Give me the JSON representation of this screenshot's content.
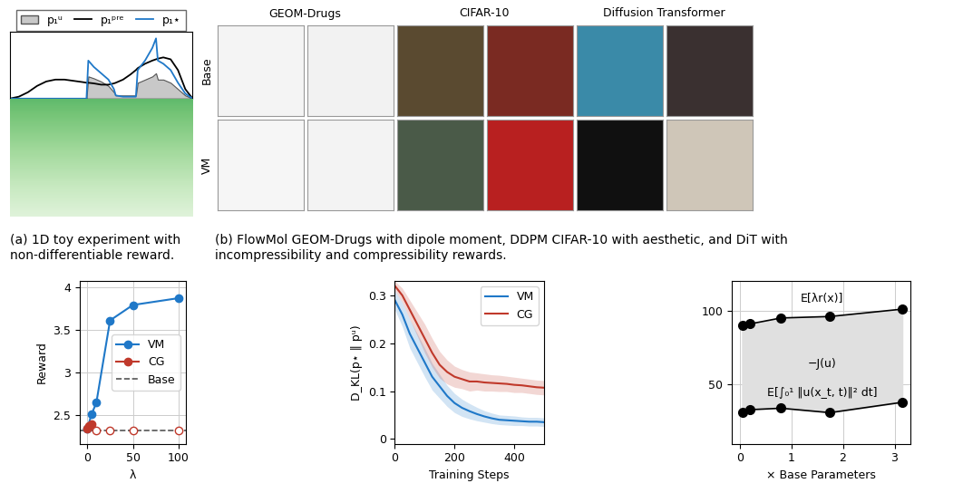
{
  "chart_data": [
    {
      "type": "line",
      "caption": "(a) 1D toy experiment with non-differentiable reward.",
      "legend": "upper center",
      "tick_labels": false,
      "xlim": [
        0,
        1
      ],
      "ylim": [
        0,
        1.05
      ],
      "x": [
        0,
        0.05,
        0.1,
        0.15,
        0.2,
        0.25,
        0.3,
        0.35,
        0.4,
        0.42,
        0.43,
        0.46,
        0.5,
        0.54,
        0.57,
        0.58,
        0.62,
        0.66,
        0.69,
        0.7,
        0.74,
        0.78,
        0.8,
        0.81,
        0.84,
        0.88,
        0.92,
        0.96,
        1.0
      ],
      "series": [
        {
          "name": "p₁ᵘ",
          "type": "area",
          "color": "#c8c8c8",
          "values": [
            0,
            0,
            0,
            0,
            0,
            0,
            0,
            0,
            0,
            0,
            0.35,
            0.32,
            0.27,
            0.2,
            0.1,
            0.05,
            0.05,
            0.05,
            0.05,
            0.25,
            0.3,
            0.35,
            0.4,
            0.3,
            0.3,
            0.25,
            0.15,
            0.05,
            0
          ]
        },
        {
          "name": "p₁ᵖʳᵉ",
          "type": "line",
          "color": "#000000",
          "values": [
            0,
            0.03,
            0.1,
            0.2,
            0.27,
            0.3,
            0.3,
            0.28,
            0.26,
            0.25,
            0.25,
            0.24,
            0.22,
            0.22,
            0.24,
            0.25,
            0.3,
            0.38,
            0.45,
            0.48,
            0.55,
            0.6,
            0.62,
            0.63,
            0.65,
            0.62,
            0.45,
            0.15,
            0
          ]
        },
        {
          "name": "p₁⋆",
          "type": "line",
          "color": "#1f78c8",
          "values": [
            0,
            0,
            0,
            0,
            0,
            0,
            0,
            0,
            0,
            0,
            0.6,
            0.5,
            0.4,
            0.3,
            0.15,
            0.05,
            0.03,
            0.03,
            0.03,
            0.45,
            0.6,
            0.8,
            0.95,
            0.6,
            0.55,
            0.45,
            0.25,
            0.08,
            0
          ]
        }
      ]
    },
    {
      "type": "line",
      "xlabel": "λ",
      "ylabel": "Reward",
      "xlim": [
        -8,
        108
      ],
      "ylim": [
        2.17,
        4.07
      ],
      "xticks": [
        0,
        50,
        100
      ],
      "yticks": [
        2.5,
        3,
        3.5,
        4
      ],
      "grid": true,
      "legend": "center right",
      "series": [
        {
          "name": "VM",
          "color": "#1f78c8",
          "marker": "circle",
          "line_style": "solid",
          "x": [
            0,
            5,
            10,
            25,
            50,
            100
          ],
          "values": [
            2.35,
            2.52,
            2.65,
            3.61,
            3.79,
            3.87
          ]
        },
        {
          "name": "CG",
          "color": "#c0392b",
          "marker": "circle",
          "line_style": "solid",
          "x": [
            0,
            2,
            5
          ],
          "values": [
            2.35,
            2.38,
            2.4
          ]
        },
        {
          "name": null,
          "color": "#c0392b",
          "marker": "open circle",
          "line_style": "none",
          "x": [
            10,
            25,
            50,
            100
          ],
          "values": [
            2.32,
            2.32,
            2.32,
            2.32
          ]
        },
        {
          "name": "Base",
          "type": "hline",
          "color": "#555555",
          "line_style": "dashed",
          "values": [
            2.32
          ]
        }
      ]
    },
    {
      "type": "line",
      "xlabel": "Training Steps",
      "ylabel": "D_KL(p⋆ ‖ pᵘ)",
      "xlim": [
        0,
        500
      ],
      "ylim": [
        -0.01,
        0.33
      ],
      "xticks": [
        0,
        200,
        400
      ],
      "yticks": [
        0,
        0.1,
        0.2,
        0.3
      ],
      "grid": false,
      "legend": "upper right",
      "x": [
        0,
        25,
        50,
        75,
        100,
        125,
        150,
        175,
        200,
        225,
        250,
        275,
        300,
        325,
        350,
        375,
        400,
        425,
        450,
        475,
        500
      ],
      "series": [
        {
          "name": "VM",
          "color": "#1f78c8",
          "values": [
            0.29,
            0.26,
            0.22,
            0.19,
            0.16,
            0.13,
            0.11,
            0.09,
            0.075,
            0.065,
            0.058,
            0.052,
            0.047,
            0.043,
            0.04,
            0.039,
            0.038,
            0.037,
            0.036,
            0.036,
            0.035
          ],
          "error": [
            0.02,
            0.025,
            0.03,
            0.03,
            0.03,
            0.028,
            0.025,
            0.022,
            0.02,
            0.018,
            0.016,
            0.014,
            0.012,
            0.011,
            0.01,
            0.01,
            0.01,
            0.009,
            0.009,
            0.009,
            0.009
          ]
        },
        {
          "name": "CG",
          "color": "#c0392b",
          "values": [
            0.32,
            0.3,
            0.27,
            0.24,
            0.21,
            0.18,
            0.155,
            0.14,
            0.13,
            0.125,
            0.12,
            0.12,
            0.118,
            0.117,
            0.116,
            0.115,
            0.113,
            0.112,
            0.11,
            0.108,
            0.107
          ],
          "error": [
            0.01,
            0.015,
            0.02,
            0.025,
            0.03,
            0.03,
            0.028,
            0.025,
            0.022,
            0.02,
            0.02,
            0.018,
            0.018,
            0.017,
            0.017,
            0.016,
            0.016,
            0.015,
            0.015,
            0.015,
            0.015
          ]
        }
      ]
    },
    {
      "type": "range",
      "xlabel": "× Base Parameters",
      "xlim": [
        -0.15,
        3.3
      ],
      "ylim": [
        10,
        120
      ],
      "xticks": [
        0,
        1,
        2,
        3
      ],
      "yticks": [
        50,
        100
      ],
      "grid": true,
      "annotations": [
        "E[λr(x)]",
        "−J(u)",
        "E[∫₀¹ ‖u(x_t, t)‖² dt]"
      ],
      "x": [
        0.05,
        0.2,
        0.8,
        1.75,
        3.15
      ],
      "series": [
        {
          "color": "#000000",
          "marker": "circle",
          "values": [
            90,
            91,
            95,
            96,
            101
          ]
        },
        {
          "color": "#000000",
          "marker": "circle",
          "values": [
            31,
            33,
            34,
            31,
            38
          ]
        }
      ]
    }
  ],
  "image_grid": {
    "caption": "(b) FlowMol GEOM-Drugs with dipole moment, DDPM CIFAR-10 with aesthetic, and DiT with incompressibility and compressibility rewards.",
    "column_groups": [
      "GEOM-Drugs",
      "CIFAR-10",
      "Diffusion Transformer"
    ],
    "rows": [
      "Base",
      "VM"
    ]
  }
}
